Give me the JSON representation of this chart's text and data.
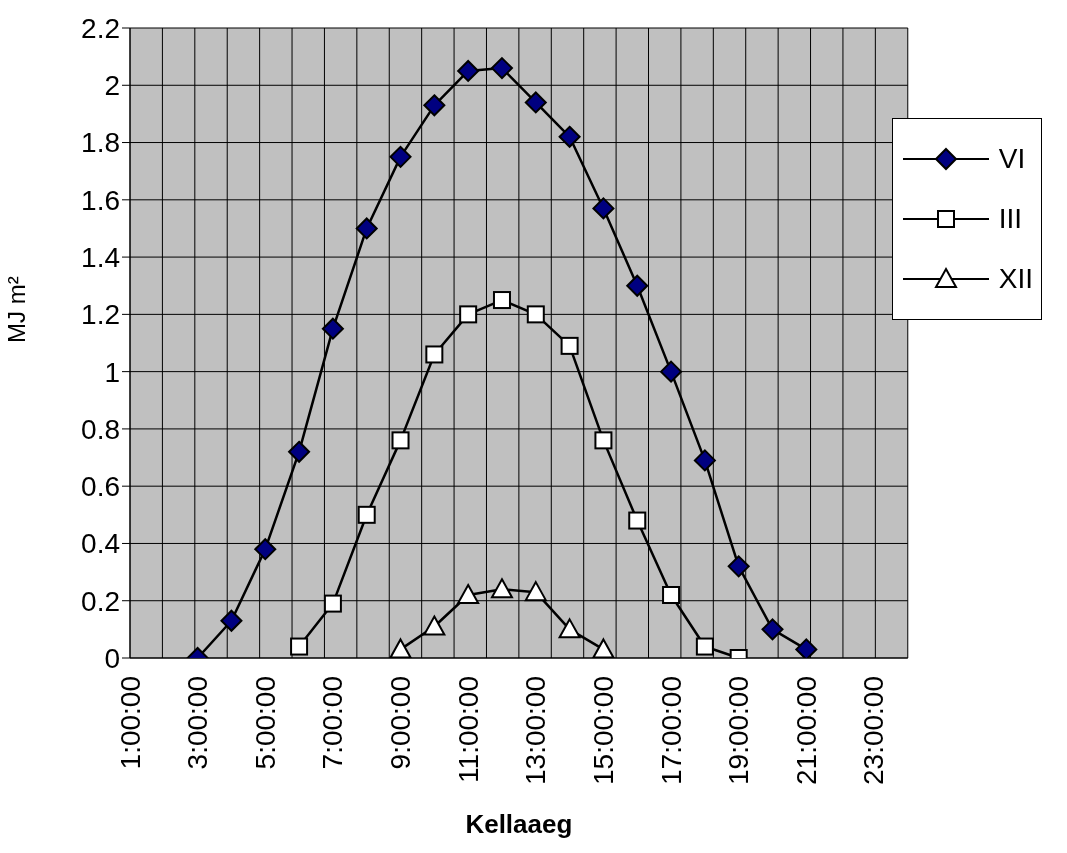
{
  "chart_data": {
    "type": "line",
    "xlabel": "Kellaaeg",
    "ylabel": "MJ m²",
    "categories": [
      "1:00:00",
      null,
      "3:00:00",
      null,
      "5:00:00",
      null,
      "7:00:00",
      null,
      "9:00:00",
      null,
      "11:00:00",
      null,
      "13:00:00",
      null,
      "15:00:00",
      null,
      "17:00:00",
      null,
      "19:00:00",
      null,
      "21:00:00",
      null,
      "23:00:00",
      null
    ],
    "series": [
      {
        "name": "VI",
        "color": "#000080",
        "marker": "diamond",
        "values": [
          null,
          null,
          0,
          0.13,
          0.38,
          0.72,
          1.15,
          1.5,
          1.75,
          1.93,
          2.05,
          2.06,
          1.94,
          1.82,
          1.57,
          1.3,
          1.0,
          0.69,
          0.32,
          0.1,
          0.03,
          null,
          null,
          null
        ]
      },
      {
        "name": "III",
        "color": "#ffffff",
        "marker": "square",
        "values": [
          null,
          null,
          null,
          null,
          null,
          0.04,
          0.19,
          0.5,
          0.76,
          1.06,
          1.2,
          1.25,
          1.2,
          1.09,
          0.76,
          0.48,
          0.22,
          0.04,
          0,
          null,
          null,
          null,
          null,
          null
        ]
      },
      {
        "name": "XII",
        "color": "#ffffff",
        "marker": "triangle",
        "values": [
          null,
          null,
          null,
          null,
          null,
          null,
          null,
          null,
          0.03,
          0.11,
          0.22,
          0.24,
          0.23,
          0.1,
          0.03,
          null,
          null,
          null,
          null,
          null,
          null,
          null,
          null,
          null
        ]
      }
    ],
    "ylim": [
      0,
      2.2
    ],
    "yticks": [
      0,
      0.2,
      0.4,
      0.6,
      0.8,
      1,
      1.2,
      1.4,
      1.6,
      1.8,
      2,
      2.2
    ],
    "grid": true,
    "legend": "right",
    "line_style": "solid"
  }
}
